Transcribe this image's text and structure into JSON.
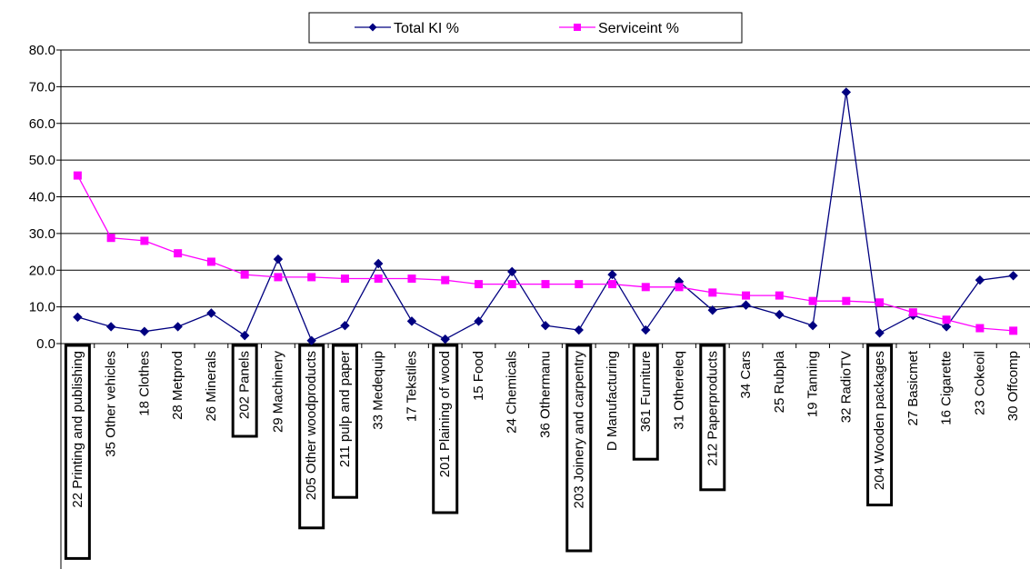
{
  "chart_data": {
    "type": "line",
    "categories": [
      "22 Printing and publishing",
      "35 Other vehicles",
      "18 Clothes",
      "28 Metprod",
      "26 Minerals",
      "202 Panels",
      "29 Machinery",
      "205 Other woodproducts",
      "211 pulp and paper",
      "33 Medequip",
      "17 Tekstiles",
      "201 Plaining of wood",
      "15 Food",
      "24 Chemicals",
      "36 Othermanu",
      "203 Joinery and carpentry",
      "D Manufacturing",
      "361 Furniture",
      "31 Othereleq",
      "212 Paperproducts",
      "34 Cars",
      "25 Rubpla",
      "19 Tanning",
      "32 RadioTV",
      "204 Wooden packages",
      "27 Basicmet",
      "16 Cigarette",
      "23 Cokeoil",
      "30 Offcomp"
    ],
    "boxed_categories": [
      "22 Printing and publishing",
      "202 Panels",
      "205 Other woodproducts",
      "211 pulp and paper",
      "201 Plaining of wood",
      "203 Joinery and carpentry",
      "361 Furniture",
      "212 Paperproducts",
      "204 Wooden packages"
    ],
    "series": [
      {
        "name": "Total KI %",
        "color": "#000080",
        "marker": "diamond",
        "values": [
          7.2,
          4.6,
          3.3,
          4.6,
          8.3,
          2.2,
          23.0,
          0.8,
          4.9,
          21.8,
          6.1,
          1.2,
          6.1,
          19.6,
          4.9,
          3.7,
          18.8,
          3.7,
          16.9,
          9.1,
          10.5,
          7.9,
          4.9,
          68.5,
          2.9,
          7.7,
          4.6,
          17.3,
          18.5
        ]
      },
      {
        "name": "Serviceint %",
        "color": "#FF00FF",
        "marker": "square",
        "values": [
          45.8,
          28.8,
          28.0,
          24.6,
          22.3,
          18.8,
          18.1,
          18.1,
          17.7,
          17.7,
          17.7,
          17.3,
          16.2,
          16.2,
          16.2,
          16.2,
          16.2,
          15.4,
          15.4,
          13.9,
          13.1,
          13.1,
          11.6,
          11.6,
          11.2,
          8.5,
          6.5,
          4.2,
          3.5
        ]
      }
    ],
    "y_ticks": [
      "0.0",
      "10.0",
      "20.0",
      "30.0",
      "40.0",
      "50.0",
      "60.0",
      "70.0",
      "80.0"
    ],
    "ylim": [
      0,
      80
    ],
    "grid": true,
    "legend_position": "top-center",
    "title": "",
    "xlabel": "",
    "ylabel": ""
  }
}
